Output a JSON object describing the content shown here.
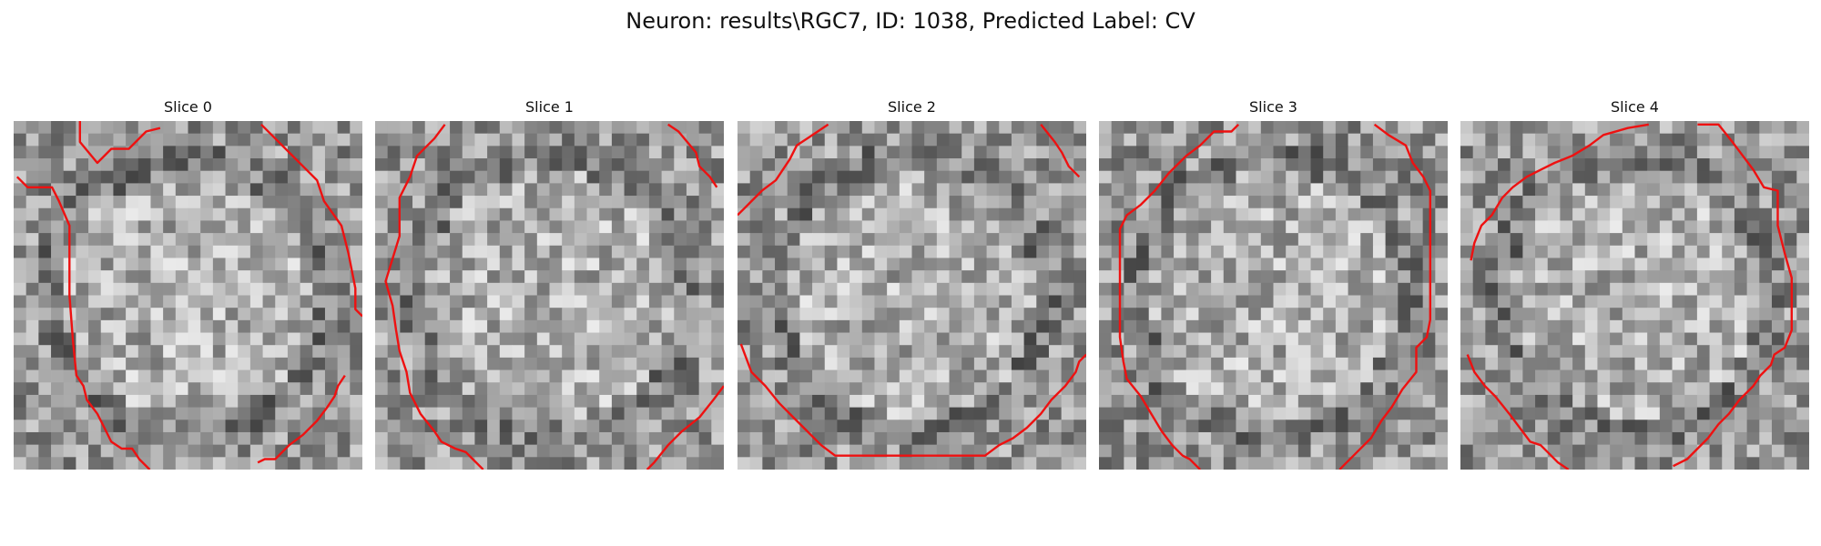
{
  "figure": {
    "title": "Neuron: results\\RGC7, ID: 1038, Predicted Label: CV"
  },
  "colors": {
    "contour": "#ee1111",
    "background": "#ffffff"
  },
  "colormap": "gray",
  "image_grid": 28,
  "slices": [
    {
      "label": "Slice 0",
      "contours": [
        [
          [
            0.19,
            0.0
          ],
          [
            0.19,
            0.06
          ],
          [
            0.24,
            0.12
          ],
          [
            0.28,
            0.08
          ],
          [
            0.33,
            0.08
          ],
          [
            0.38,
            0.03
          ],
          [
            0.42,
            0.02
          ]
        ],
        [
          [
            0.71,
            0.01
          ],
          [
            0.75,
            0.05
          ],
          [
            0.79,
            0.09
          ],
          [
            0.83,
            0.13
          ],
          [
            0.87,
            0.17
          ],
          [
            0.89,
            0.23
          ],
          [
            0.94,
            0.3
          ],
          [
            0.96,
            0.38
          ],
          [
            0.98,
            0.48
          ],
          [
            0.98,
            0.54
          ],
          [
            1.0,
            0.56
          ]
        ],
        [
          [
            0.01,
            0.16
          ],
          [
            0.04,
            0.19
          ],
          [
            0.11,
            0.19
          ],
          [
            0.13,
            0.23
          ],
          [
            0.16,
            0.3
          ],
          [
            0.16,
            0.5
          ],
          [
            0.17,
            0.63
          ],
          [
            0.18,
            0.73
          ],
          [
            0.2,
            0.76
          ],
          [
            0.21,
            0.8
          ],
          [
            0.24,
            0.84
          ],
          [
            0.26,
            0.88
          ],
          [
            0.28,
            0.92
          ],
          [
            0.31,
            0.94
          ],
          [
            0.34,
            0.94
          ],
          [
            0.36,
            0.97
          ],
          [
            0.39,
            1.0
          ]
        ],
        [
          [
            0.95,
            0.73
          ],
          [
            0.93,
            0.76
          ],
          [
            0.92,
            0.79
          ],
          [
            0.9,
            0.82
          ],
          [
            0.87,
            0.86
          ],
          [
            0.83,
            0.9
          ],
          [
            0.79,
            0.93
          ],
          [
            0.75,
            0.97
          ],
          [
            0.72,
            0.97
          ],
          [
            0.7,
            0.98
          ]
        ]
      ]
    },
    {
      "label": "Slice 1",
      "contours": [
        [
          [
            0.2,
            0.01
          ],
          [
            0.17,
            0.05
          ],
          [
            0.12,
            0.1
          ],
          [
            0.1,
            0.16
          ],
          [
            0.07,
            0.22
          ],
          [
            0.07,
            0.33
          ],
          [
            0.03,
            0.46
          ],
          [
            0.05,
            0.53
          ],
          [
            0.06,
            0.6
          ],
          [
            0.07,
            0.66
          ],
          [
            0.09,
            0.72
          ],
          [
            0.1,
            0.78
          ],
          [
            0.13,
            0.84
          ],
          [
            0.17,
            0.89
          ],
          [
            0.19,
            0.92
          ],
          [
            0.23,
            0.94
          ],
          [
            0.26,
            0.95
          ],
          [
            0.28,
            0.97
          ],
          [
            0.31,
            1.0
          ]
        ],
        [
          [
            0.84,
            0.01
          ],
          [
            0.87,
            0.03
          ],
          [
            0.92,
            0.09
          ],
          [
            0.93,
            0.13
          ],
          [
            0.96,
            0.16
          ],
          [
            0.98,
            0.19
          ]
        ],
        [
          [
            1.0,
            0.76
          ],
          [
            0.97,
            0.8
          ],
          [
            0.93,
            0.85
          ],
          [
            0.88,
            0.89
          ],
          [
            0.84,
            0.93
          ],
          [
            0.8,
            0.98
          ],
          [
            0.78,
            1.0
          ]
        ]
      ]
    },
    {
      "label": "Slice 2",
      "contours": [
        [
          [
            0.26,
            0.01
          ],
          [
            0.23,
            0.03
          ],
          [
            0.17,
            0.07
          ],
          [
            0.15,
            0.11
          ],
          [
            0.11,
            0.17
          ],
          [
            0.07,
            0.2
          ],
          [
            0.04,
            0.23
          ],
          [
            0.02,
            0.25
          ],
          [
            0.0,
            0.27
          ]
        ],
        [
          [
            0.87,
            0.01
          ],
          [
            0.91,
            0.06
          ],
          [
            0.93,
            0.09
          ],
          [
            0.95,
            0.13
          ],
          [
            0.98,
            0.16
          ]
        ],
        [
          [
            0.01,
            0.64
          ],
          [
            0.04,
            0.72
          ],
          [
            0.08,
            0.76
          ],
          [
            0.12,
            0.81
          ],
          [
            0.16,
            0.85
          ],
          [
            0.2,
            0.89
          ],
          [
            0.24,
            0.93
          ],
          [
            0.28,
            0.96
          ],
          [
            0.35,
            0.96
          ],
          [
            0.71,
            0.96
          ],
          [
            0.75,
            0.93
          ],
          [
            0.79,
            0.91
          ],
          [
            0.83,
            0.88
          ],
          [
            0.87,
            0.84
          ],
          [
            0.9,
            0.8
          ],
          [
            0.94,
            0.76
          ],
          [
            0.97,
            0.72
          ],
          [
            0.98,
            0.69
          ],
          [
            1.0,
            0.67
          ]
        ]
      ]
    },
    {
      "label": "Slice 3",
      "contours": [
        [
          [
            0.4,
            0.01
          ],
          [
            0.38,
            0.03
          ],
          [
            0.33,
            0.03
          ],
          [
            0.29,
            0.07
          ],
          [
            0.25,
            0.1
          ],
          [
            0.2,
            0.15
          ],
          [
            0.16,
            0.2
          ],
          [
            0.12,
            0.24
          ],
          [
            0.08,
            0.27
          ],
          [
            0.06,
            0.31
          ],
          [
            0.06,
            0.62
          ],
          [
            0.07,
            0.69
          ],
          [
            0.08,
            0.74
          ],
          [
            0.12,
            0.79
          ],
          [
            0.15,
            0.84
          ],
          [
            0.18,
            0.89
          ],
          [
            0.21,
            0.93
          ],
          [
            0.24,
            0.96
          ],
          [
            0.26,
            0.97
          ],
          [
            0.29,
            1.0
          ]
        ],
        [
          [
            0.79,
            0.01
          ],
          [
            0.83,
            0.04
          ],
          [
            0.88,
            0.07
          ],
          [
            0.9,
            0.12
          ],
          [
            0.93,
            0.16
          ],
          [
            0.95,
            0.2
          ],
          [
            0.95,
            0.57
          ],
          [
            0.94,
            0.62
          ],
          [
            0.91,
            0.65
          ],
          [
            0.91,
            0.72
          ],
          [
            0.87,
            0.77
          ],
          [
            0.84,
            0.82
          ],
          [
            0.81,
            0.86
          ],
          [
            0.78,
            0.91
          ],
          [
            0.74,
            0.95
          ],
          [
            0.71,
            0.98
          ],
          [
            0.69,
            1.0
          ]
        ]
      ]
    },
    {
      "label": "Slice 4",
      "contours": [
        [
          [
            0.03,
            0.4
          ],
          [
            0.04,
            0.35
          ],
          [
            0.06,
            0.3
          ],
          [
            0.09,
            0.27
          ],
          [
            0.12,
            0.22
          ],
          [
            0.15,
            0.19
          ],
          [
            0.19,
            0.16
          ],
          [
            0.23,
            0.14
          ],
          [
            0.27,
            0.12
          ],
          [
            0.32,
            0.1
          ],
          [
            0.37,
            0.07
          ],
          [
            0.41,
            0.04
          ],
          [
            0.48,
            0.02
          ],
          [
            0.54,
            0.01
          ]
        ],
        [
          [
            0.68,
            0.01
          ],
          [
            0.74,
            0.01
          ],
          [
            0.78,
            0.06
          ],
          [
            0.81,
            0.1
          ],
          [
            0.84,
            0.14
          ],
          [
            0.87,
            0.19
          ],
          [
            0.91,
            0.2
          ],
          [
            0.91,
            0.3
          ],
          [
            0.93,
            0.38
          ],
          [
            0.95,
            0.45
          ],
          [
            0.95,
            0.6
          ],
          [
            0.93,
            0.65
          ],
          [
            0.9,
            0.67
          ],
          [
            0.89,
            0.7
          ],
          [
            0.86,
            0.73
          ],
          [
            0.84,
            0.76
          ],
          [
            0.8,
            0.8
          ],
          [
            0.77,
            0.84
          ],
          [
            0.74,
            0.87
          ],
          [
            0.71,
            0.91
          ],
          [
            0.68,
            0.94
          ],
          [
            0.65,
            0.97
          ],
          [
            0.61,
            0.99
          ]
        ],
        [
          [
            0.02,
            0.67
          ],
          [
            0.04,
            0.72
          ],
          [
            0.07,
            0.76
          ],
          [
            0.1,
            0.79
          ],
          [
            0.14,
            0.84
          ],
          [
            0.17,
            0.88
          ],
          [
            0.2,
            0.92
          ],
          [
            0.23,
            0.93
          ],
          [
            0.26,
            0.96
          ],
          [
            0.28,
            0.98
          ],
          [
            0.31,
            1.0
          ]
        ]
      ]
    }
  ]
}
